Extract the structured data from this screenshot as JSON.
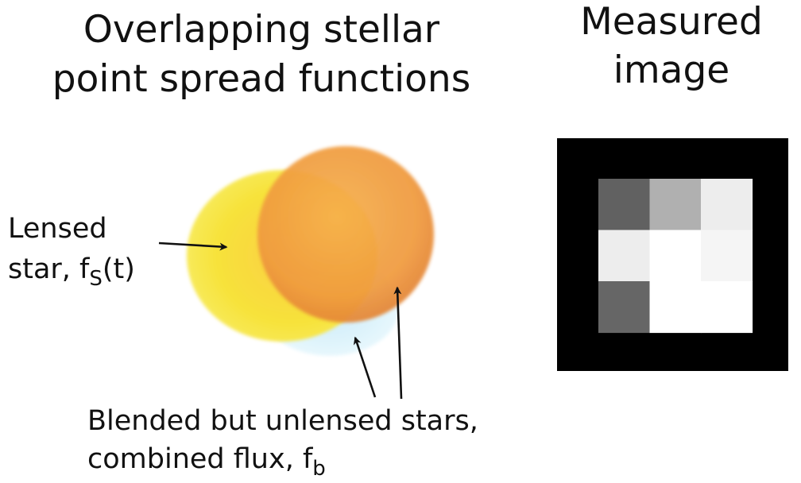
{
  "titles": {
    "left_line1": "Overlapping stellar",
    "left_line2": "point spread functions",
    "right_line1": "Measured",
    "right_line2": "image"
  },
  "labels": {
    "lensed_line1": "Lensed",
    "lensed_line2_prefix": "star, f",
    "lensed_line2_sub": "S",
    "lensed_line2_suffix": "(t)",
    "blend_line1": "Blended but unlensed stars,",
    "blend_line2_prefix": "combined flux, f",
    "blend_line2_sub": "b"
  },
  "colors": {
    "lensed_star": "#f7e23a",
    "blended_star_orange": "#ef9a3c",
    "blended_star_blue": "#d6f1fb",
    "image_frame": "#000000"
  },
  "measured_image": {
    "rows": 3,
    "cols": 3,
    "pixel_intensity": [
      [
        0.38,
        0.69,
        0.93
      ],
      [
        0.93,
        1.0,
        0.96
      ],
      [
        0.4,
        1.0,
        1.0
      ]
    ]
  }
}
